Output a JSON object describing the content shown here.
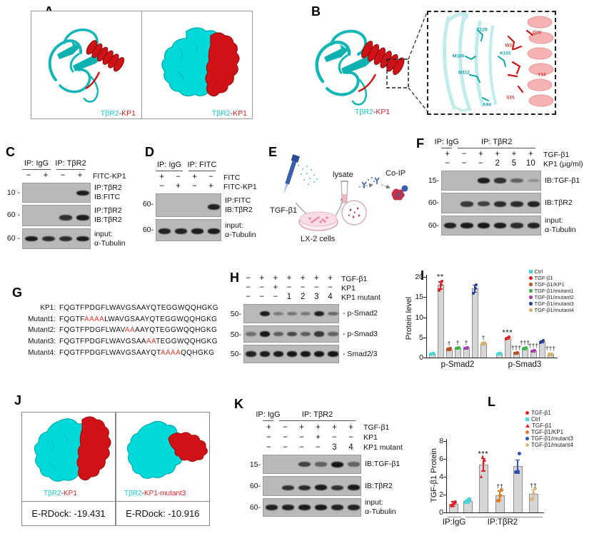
{
  "panels": {
    "A": {
      "label": "A",
      "captions": [
        [
          {
            "t": "TβR2",
            "color": "#17c7c7"
          },
          {
            "t": "-",
            "color": "#222222"
          },
          {
            "t": "KP1",
            "color": "#e02328"
          }
        ],
        [
          {
            "t": "TβR2",
            "color": "#17c7c7"
          },
          {
            "t": "-",
            "color": "#222222"
          },
          {
            "t": "KP1",
            "color": "#e02328"
          }
        ]
      ]
    },
    "B": {
      "label": "B",
      "caption": [
        {
          "t": "TβR2",
          "color": "#17c7c7"
        },
        {
          "t": "-",
          "color": "#222222"
        },
        {
          "t": "KP1",
          "color": "#e02328"
        }
      ],
      "residues": [
        {
          "t": "E129",
          "color": "#0e9eae"
        },
        {
          "t": "M100",
          "color": "#0e9eae"
        },
        {
          "t": "K101",
          "color": "#0e9eae"
        },
        {
          "t": "M112",
          "color": "#0e9eae"
        },
        {
          "t": "A94",
          "color": "#0e9eae"
        },
        {
          "t": "Q26",
          "color": "#d8393b"
        },
        {
          "t": "W24",
          "color": "#d8393b"
        },
        {
          "t": "Y18",
          "color": "#d8393b"
        },
        {
          "t": "S15",
          "color": "#d8393b"
        }
      ]
    },
    "C": {
      "label": "C",
      "groups": [
        {
          "label": "IP: IgG",
          "start": 0,
          "span": 2
        },
        {
          "label": "IP: TβR2",
          "start": 2,
          "span": 2
        }
      ],
      "sign_rows": [
        {
          "label": "FITC-KP1",
          "signs": [
            "−",
            "+",
            "−",
            "+"
          ]
        }
      ],
      "blots": [
        {
          "marker": "10 -",
          "bands": [
            0,
            0,
            0,
            0.95
          ],
          "labels": [
            "IP:TβR2",
            "IB:FITC"
          ]
        },
        {
          "marker": "60 -",
          "bands": [
            0,
            0,
            0.8,
            0.95
          ],
          "labels": [
            "IP:TβR2",
            "IB:TβR2"
          ]
        },
        {
          "marker": "60 -",
          "bands": [
            0.95,
            0.85,
            0.85,
            0.95
          ],
          "labels": [
            "input:",
            "α-Tubulin"
          ]
        }
      ]
    },
    "D": {
      "label": "D",
      "groups": [
        {
          "label": "IP: IgG",
          "start": 0,
          "span": 2
        },
        {
          "label": "IP: FITC",
          "start": 2,
          "span": 2
        }
      ],
      "sign_rows": [
        {
          "label": "FITC",
          "signs": [
            "+",
            "−",
            "+",
            "−"
          ]
        },
        {
          "label": "FITC-KP1",
          "signs": [
            "−",
            "+",
            "−",
            "+"
          ]
        }
      ],
      "blots": [
        {
          "marker": "60-",
          "bands": [
            0,
            0,
            0,
            0.9
          ],
          "labels": [
            "IP:FITC",
            "IB:TβR2"
          ]
        },
        {
          "marker": "60-",
          "bands": [
            0.9,
            0.9,
            0.95,
            0.95
          ],
          "labels": [
            "input:",
            "α-Tubulin"
          ]
        }
      ]
    },
    "E": {
      "label": "E",
      "labels": {
        "tgfb1": "TGF-β1",
        "cells": "LX-2 cells",
        "lysate": "lysate",
        "coip": "Co-IP"
      }
    },
    "F": {
      "label": "F",
      "groups": [
        {
          "label": "IP: IgG",
          "start": 0,
          "span": 1
        },
        {
          "label": "IP: TβR2",
          "start": 1,
          "span": 5
        }
      ],
      "sign_rows": [
        {
          "label": "TGF-β1",
          "signs": [
            "+",
            "−",
            "+",
            "+",
            "+",
            "+"
          ]
        },
        {
          "label": "KP1 (μg/ml)",
          "signs": [
            "−",
            "−",
            "−",
            "2",
            "5",
            "10"
          ]
        }
      ],
      "blots": [
        {
          "marker": "15-",
          "bands": [
            0,
            0,
            0.95,
            0.8,
            0.45,
            0.12
          ],
          "labels": [
            "IB:TGF-β1"
          ]
        },
        {
          "marker": "60-",
          "bands": [
            0,
            0.75,
            0.7,
            0.85,
            0.85,
            0.9
          ],
          "labels": [
            "IB:TβR2"
          ]
        },
        {
          "marker": "60-",
          "bands": [
            0.9,
            0.95,
            1,
            0.95,
            0.85,
            0.9
          ],
          "labels": [
            "input:",
            "α-Tubulin"
          ]
        }
      ]
    },
    "G": {
      "label": "G",
      "rows": [
        {
          "name": "KP1:",
          "parts": [
            {
              "t": "FQGTFPDGFLWAVGSAAYQTEGGWQQHGKG",
              "red": false
            }
          ]
        },
        {
          "name": "Mutant1:",
          "parts": [
            {
              "t": "FQGTF",
              "red": false
            },
            {
              "t": "AAAA",
              "red": true
            },
            {
              "t": "LWAVGSAAYQTEGGWQQHGKG",
              "red": false
            }
          ]
        },
        {
          "name": "Mutant2:",
          "parts": [
            {
              "t": "FQGTFPDGFLWAV",
              "red": false
            },
            {
              "t": "AA",
              "red": true
            },
            {
              "t": "AAYQTEGGWQQHGKG",
              "red": false
            }
          ]
        },
        {
          "name": "Mutant3:",
          "parts": [
            {
              "t": "FQGTFPDGFLWAVGSAA",
              "red": false
            },
            {
              "t": "AA",
              "red": true
            },
            {
              "t": "TEGGWQQHGKG",
              "red": false
            }
          ]
        },
        {
          "name": "Mutant4:",
          "parts": [
            {
              "t": "FQGTFPDGFLWAVGSAAYQT",
              "red": false
            },
            {
              "t": "AAAA",
              "red": true
            },
            {
              "t": "QQHGKG",
              "red": false
            }
          ]
        }
      ]
    },
    "H": {
      "label": "H",
      "sign_rows": [
        {
          "label": "TGF-β1",
          "signs": [
            "−",
            "+",
            "+",
            "+",
            "+",
            "+",
            "+"
          ]
        },
        {
          "label": "KP1",
          "signs": [
            "−",
            "−",
            "+",
            "−",
            "−",
            "−",
            "−"
          ]
        },
        {
          "label": "KP1 mutant",
          "signs": [
            "−",
            "−",
            "−",
            "1",
            "2",
            "3",
            "4"
          ]
        }
      ],
      "blots": [
        {
          "marker": "50-",
          "bands": [
            0,
            0.95,
            0.25,
            0.3,
            0.28,
            0.9,
            0.4
          ],
          "labels": [
            "- p-Smad2"
          ]
        },
        {
          "marker": "50-",
          "bands": [
            0.35,
            1,
            0.5,
            0.65,
            0.5,
            0.75,
            0.45
          ],
          "labels": [
            "- p-Smad3"
          ]
        },
        {
          "marker": "50-",
          "bands": [
            0.9,
            0.95,
            0.95,
            1,
            1,
            1,
            1
          ],
          "labels": [
            "- Smad2/3"
          ]
        }
      ]
    },
    "I": {
      "label": "I"
    },
    "J": {
      "label": "J",
      "cells": [
        {
          "caption": [
            {
              "t": "TβR2",
              "color": "#17c7c7"
            },
            {
              "t": "-",
              "color": "#222222"
            },
            {
              "t": "KP1",
              "color": "#e02328"
            }
          ],
          "score": "E-RDock: -19.431"
        },
        {
          "caption": [
            {
              "t": "TβR2",
              "color": "#17c7c7"
            },
            {
              "t": "-",
              "color": "#222222"
            },
            {
              "t": "KP1-mutant3",
              "color": "#e02328"
            }
          ],
          "score": "E-RDock: -10.916"
        }
      ]
    },
    "K": {
      "label": "K",
      "groups": [
        {
          "label": "IP: IgG",
          "start": 0,
          "span": 1
        },
        {
          "label": "IP: TβR2",
          "start": 1,
          "span": 5
        }
      ],
      "sign_rows": [
        {
          "label": "TGF-β1",
          "signs": [
            "+",
            "−",
            "+",
            "+",
            "+",
            "+"
          ]
        },
        {
          "label": "KP1",
          "signs": [
            "−",
            "−",
            "−",
            "+",
            "−",
            "−"
          ]
        },
        {
          "label": "KP1 mutant",
          "signs": [
            "−",
            "−",
            "−",
            "−",
            "3",
            "4"
          ]
        }
      ],
      "blots": [
        {
          "marker": "15-",
          "bands": [
            0,
            0,
            0.7,
            0.45,
            1,
            0.45
          ],
          "labels": [
            "IB:TGF-β1"
          ]
        },
        {
          "marker": "60-",
          "bands": [
            0,
            0.8,
            0.85,
            0.95,
            0.8,
            0.95
          ],
          "labels": [
            "IB:TβR2"
          ]
        },
        {
          "marker": "60-",
          "bands": [
            0.9,
            0.9,
            0.95,
            0.95,
            0.9,
            0.9
          ],
          "labels": [
            "input:",
            "α-Tubulin"
          ]
        }
      ]
    },
    "L": {
      "label": "L"
    }
  },
  "chart_data": [
    {
      "panel": "I",
      "type": "bar",
      "ylabel": "Protein level",
      "ylim": [
        0,
        20
      ],
      "yticks": [
        0,
        5,
        10,
        15,
        20
      ],
      "group_labels": [
        "p-Smad2",
        "p-Smad3"
      ],
      "bar_fill": "#d6d6d6",
      "bar_stroke": "#8f8f8f",
      "series": [
        {
          "name": "Ctrl",
          "color": "#45d7dc",
          "marker": "square",
          "values": [
            1.0,
            1.0
          ],
          "ann": [
            "",
            ""
          ]
        },
        {
          "name": "TGF-β1",
          "color": "#e02328",
          "marker": "circle",
          "values": [
            18.0,
            4.9
          ],
          "ann": [
            "**",
            "***"
          ]
        },
        {
          "name": "TGF-β1/KP1",
          "color": "#c05025",
          "marker": "circle",
          "values": [
            2.2,
            1.2
          ],
          "ann": [
            "†",
            "†††"
          ]
        },
        {
          "name": "TGF-β1/mutant1",
          "color": "#3cb54a",
          "marker": "circle",
          "values": [
            2.4,
            2.3
          ],
          "ann": [
            "†",
            "†††"
          ]
        },
        {
          "name": "TGF-β1/mutant2",
          "color": "#a23fa8",
          "marker": "circle",
          "values": [
            2.4,
            1.7
          ],
          "ann": [
            "†",
            "†††"
          ]
        },
        {
          "name": "TGF-β1/mutant3",
          "color": "#2b3f9e",
          "marker": "circle",
          "values": [
            17.2,
            4.0
          ],
          "ann": [
            "",
            ""
          ]
        },
        {
          "name": "TGF-β1/mutant4",
          "color": "#d9b06a",
          "marker": "circle",
          "values": [
            3.6,
            0.9
          ],
          "ann": [
            "†",
            "†††"
          ]
        }
      ]
    },
    {
      "panel": "L",
      "type": "bar",
      "ylabel": "TGF-β1 Protein",
      "ylim": [
        0,
        8
      ],
      "yticks": [
        0,
        2,
        4,
        6,
        8
      ],
      "group_labels": [
        "IP:IgG",
        "IP:TβR2"
      ],
      "bar_fill": "#d6d6d6",
      "bar_stroke": "#8f8f8f",
      "bars": [
        {
          "name": "TGF-β1",
          "color": "#e02328",
          "marker": "circle",
          "value": 1.0,
          "err": 0.25,
          "ann": "",
          "points": [
            0.75,
            1.0,
            1.15
          ]
        },
        {
          "name": "Ctrl",
          "color": "#45d7dc",
          "marker": "square",
          "value": 1.3,
          "err": 0.2,
          "ann": "",
          "points": [
            1.15,
            1.3,
            1.5
          ]
        },
        {
          "name": "TGF-β1",
          "color": "#e02328",
          "marker": "triangle",
          "value": 5.4,
          "err": 0.7,
          "ann": "***",
          "points": [
            4.0,
            5.6,
            5.9,
            6.3
          ]
        },
        {
          "name": "TGF-β1/KP1",
          "color": "#e07b20",
          "marker": "circle",
          "value": 1.9,
          "err": 0.55,
          "ann": "††",
          "points": [
            1.3,
            1.9,
            2.5
          ]
        },
        {
          "name": "TGF-β1/mutant3",
          "color": "#3050b4",
          "marker": "circle",
          "value": 5.2,
          "err": 0.75,
          "ann": "",
          "points": [
            4.5,
            4.6,
            6.6
          ]
        },
        {
          "name": "TGF-β1/mutant4",
          "color": "#dcb77e",
          "marker": "circle",
          "value": 2.1,
          "err": 0.5,
          "ann": "††",
          "points": [
            1.5,
            2.1,
            2.7
          ]
        }
      ],
      "legend": [
        {
          "label": "TGF-β1",
          "color": "#e02328",
          "marker": "circle"
        },
        {
          "label": "Ctrl",
          "color": "#45d7dc",
          "marker": "square"
        },
        {
          "label": "TGF-β1",
          "color": "#e02328",
          "marker": "triangle"
        },
        {
          "label": "TGF-β1/KP1",
          "color": "#e07b20",
          "marker": "circle"
        },
        {
          "label": "TGF-β1/mutant3",
          "color": "#3050b4",
          "marker": "circle"
        },
        {
          "label": "TGF-β1/mutant4",
          "color": "#dcb77e",
          "marker": "circle"
        }
      ]
    }
  ]
}
